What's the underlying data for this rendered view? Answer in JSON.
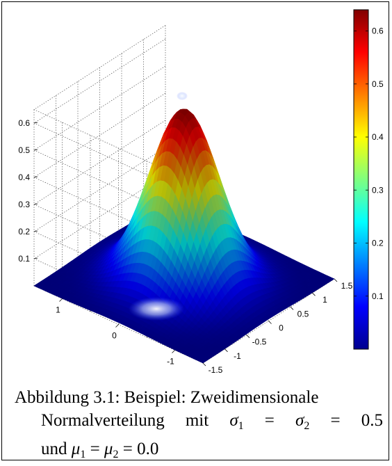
{
  "chart_data": {
    "type": "surface",
    "title": "",
    "xlabel": "",
    "ylabel": "",
    "zlabel": "",
    "function": "bivariate normal density",
    "parameters": {
      "mu1": 0.0,
      "mu2": 0.0,
      "sigma1": 0.5,
      "sigma2": 0.5
    },
    "xlim": [
      -1.5,
      1.5
    ],
    "ylim": [
      -1.5,
      1.5
    ],
    "zlim": [
      0,
      0.65
    ],
    "peak_value": 0.6366,
    "x_ticks": [
      "1",
      "0",
      "-1"
    ],
    "y_ticks": [
      "1.5",
      "1",
      "0.5",
      "0",
      "-0.5",
      "-1",
      "-1.5"
    ],
    "z_ticks": [
      "0.1",
      "0.2",
      "0.3",
      "0.4",
      "0.5",
      "0.6"
    ],
    "colorbar_ticks": [
      "0.6",
      "0.5",
      "0.4",
      "0.3",
      "0.2",
      "0.1"
    ],
    "colorbar_range": [
      0.0,
      0.64
    ],
    "colormap": "jet",
    "grid": true
  },
  "caption": {
    "line1": "Abbildung 3.1: Beispiel: Zweidimensionale",
    "line2_words": [
      "Normalverteilung",
      "mit",
      "σ",
      "=",
      "σ",
      "=",
      "0.5"
    ],
    "line3": "und μ1 = μ2 = 0.0",
    "subscript_1": "1",
    "subscript_2": "2",
    "und": "und",
    "mu": "μ",
    "eq": "=",
    "mu_value": "0.0"
  }
}
